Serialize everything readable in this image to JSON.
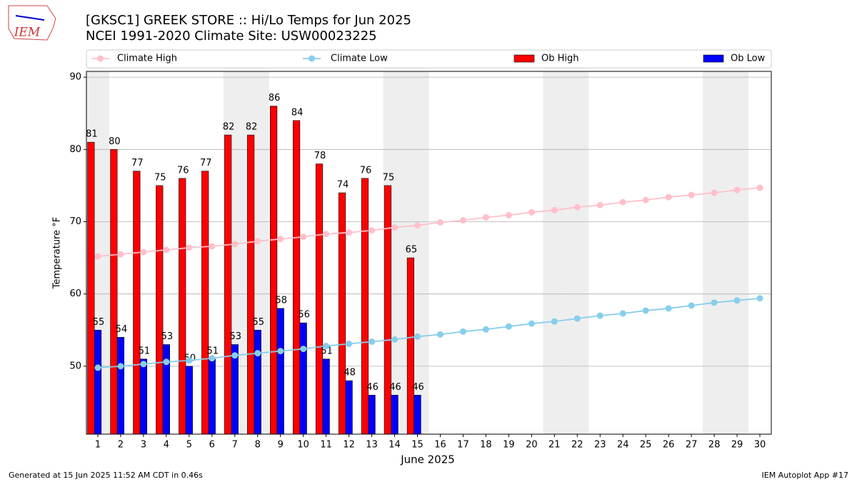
{
  "chart_data": {
    "type": "bar",
    "title": "[GKSC1] GREEK STORE :: Hi/Lo Temps for Jun 2025",
    "subtitle": "NCEI 1991-2020 Climate Site: USW00023225",
    "logo_text": "IEM",
    "xlabel": "June 2025",
    "ylabel": "Temperature °F",
    "footer_left": "Generated at 15 Jun 2025 11:52 AM CDT in 0.46s",
    "footer_right": "IEM Autoplot App #17",
    "x": [
      1,
      2,
      3,
      4,
      5,
      6,
      7,
      8,
      9,
      10,
      11,
      12,
      13,
      14,
      15,
      16,
      17,
      18,
      19,
      20,
      21,
      22,
      23,
      24,
      25,
      26,
      27,
      28,
      29,
      30
    ],
    "xticks": [
      1,
      2,
      3,
      4,
      5,
      6,
      7,
      8,
      9,
      10,
      11,
      12,
      13,
      14,
      15,
      16,
      17,
      18,
      19,
      20,
      21,
      22,
      23,
      24,
      25,
      26,
      27,
      28,
      29,
      30
    ],
    "xlim": [
      0.5,
      30.5
    ],
    "ylim": [
      40.6,
      90.8
    ],
    "yticks": [
      50,
      60,
      70,
      80,
      90
    ],
    "grid": true,
    "highlight_x": [
      1,
      7,
      8,
      14,
      15,
      21,
      22,
      28,
      29
    ],
    "series": [
      {
        "name": "Climate High",
        "type": "line",
        "color": "#ffc0cb",
        "values": [
          65.2,
          65.5,
          65.8,
          66.1,
          66.4,
          66.6,
          66.9,
          67.3,
          67.6,
          67.9,
          68.3,
          68.5,
          68.8,
          69.2,
          69.5,
          69.9,
          70.2,
          70.6,
          70.9,
          71.3,
          71.6,
          72.0,
          72.3,
          72.7,
          73.0,
          73.4,
          73.7,
          74.0,
          74.4,
          74.7
        ]
      },
      {
        "name": "Climate Low",
        "type": "line",
        "color": "#87ceeb",
        "values": [
          49.8,
          50.0,
          50.3,
          50.6,
          50.8,
          51.1,
          51.5,
          51.8,
          52.1,
          52.4,
          52.8,
          53.1,
          53.4,
          53.7,
          54.1,
          54.4,
          54.8,
          55.1,
          55.5,
          55.9,
          56.2,
          56.6,
          57.0,
          57.3,
          57.7,
          58.0,
          58.4,
          58.8,
          59.1,
          59.4
        ]
      },
      {
        "name": "Ob High",
        "type": "bar",
        "color": "#ff0000",
        "values": [
          81,
          80,
          77,
          75,
          76,
          77,
          82,
          82,
          86,
          84,
          78,
          74,
          76,
          75,
          65,
          null,
          null,
          null,
          null,
          null,
          null,
          null,
          null,
          null,
          null,
          null,
          null,
          null,
          null,
          null
        ]
      },
      {
        "name": "Ob Low",
        "type": "bar",
        "color": "#0000ff",
        "values": [
          55,
          54,
          51,
          53,
          50,
          51,
          53,
          55,
          58,
          56,
          51,
          48,
          46,
          46,
          46,
          null,
          null,
          null,
          null,
          null,
          null,
          null,
          null,
          null,
          null,
          null,
          null,
          null,
          null,
          null
        ]
      }
    ]
  }
}
